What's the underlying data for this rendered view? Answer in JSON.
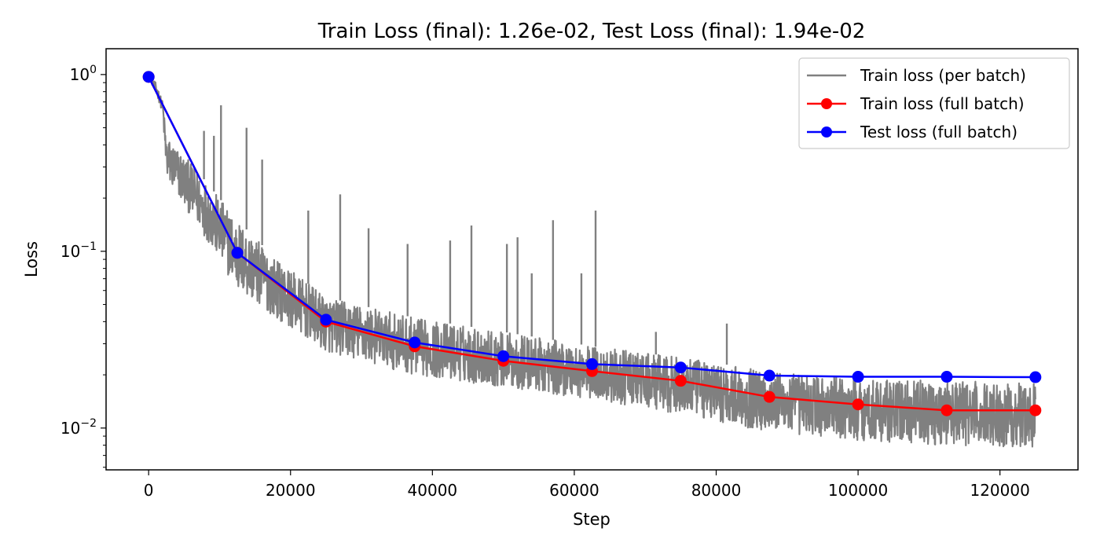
{
  "chart_data": {
    "type": "line",
    "title": "Train Loss (final): 1.26e-02, Test Loss (final): 1.94e-02",
    "xlabel": "Step",
    "ylabel": "Loss",
    "xlim": [
      -6000,
      131000
    ],
    "ylim": [
      0.0058,
      1.4
    ],
    "yscale": "log",
    "x_ticks": [
      0,
      20000,
      40000,
      60000,
      80000,
      100000,
      120000
    ],
    "x_tick_labels": [
      "0",
      "20000",
      "40000",
      "60000",
      "80000",
      "100000",
      "120000"
    ],
    "y_ticks": [
      1,
      0.1,
      0.01
    ],
    "y_tick_labels": [
      {
        "base": "10",
        "exp": "0"
      },
      {
        "base": "10",
        "exp": "−1"
      },
      {
        "base": "10",
        "exp": "−2"
      }
    ],
    "grid": false,
    "legend_position": "top-right",
    "series": [
      {
        "name": "Train loss (per batch)",
        "color": "#808080",
        "style": "noisy-band",
        "x": [
          0,
          1000,
          2000,
          2500,
          5000,
          8000,
          12500,
          18000,
          25000,
          37500,
          50000,
          62500,
          75000,
          87500,
          100000,
          112500,
          125000
        ],
        "y_upper": [
          1.0,
          0.9,
          0.7,
          0.45,
          0.35,
          0.25,
          0.15,
          0.09,
          0.055,
          0.042,
          0.035,
          0.029,
          0.025,
          0.021,
          0.019,
          0.0185,
          0.018
        ],
        "y_lower": [
          0.95,
          0.8,
          0.6,
          0.25,
          0.18,
          0.12,
          0.06,
          0.042,
          0.027,
          0.02,
          0.017,
          0.0145,
          0.012,
          0.0095,
          0.0085,
          0.008,
          0.0078
        ],
        "spikes": [
          {
            "x": 10200,
            "y": 0.67
          },
          {
            "x": 13800,
            "y": 0.5
          },
          {
            "x": 7800,
            "y": 0.48
          },
          {
            "x": 9200,
            "y": 0.45
          },
          {
            "x": 16000,
            "y": 0.33
          },
          {
            "x": 27000,
            "y": 0.21
          },
          {
            "x": 22500,
            "y": 0.17
          },
          {
            "x": 31000,
            "y": 0.135
          },
          {
            "x": 63000,
            "y": 0.17
          },
          {
            "x": 57000,
            "y": 0.15
          },
          {
            "x": 45500,
            "y": 0.14
          },
          {
            "x": 52000,
            "y": 0.12
          },
          {
            "x": 50500,
            "y": 0.11
          },
          {
            "x": 42500,
            "y": 0.115
          },
          {
            "x": 36500,
            "y": 0.11
          },
          {
            "x": 61000,
            "y": 0.075
          },
          {
            "x": 54000,
            "y": 0.075
          },
          {
            "x": 81500,
            "y": 0.039
          },
          {
            "x": 71500,
            "y": 0.035
          }
        ]
      },
      {
        "name": "Train loss (full batch)",
        "color": "#ff0000",
        "marker": "circle",
        "x": [
          0,
          12500,
          25000,
          37500,
          50000,
          62500,
          75000,
          87500,
          100000,
          112500,
          125000
        ],
        "y": [
          0.97,
          0.098,
          0.04,
          0.029,
          0.024,
          0.021,
          0.0185,
          0.015,
          0.0136,
          0.0126,
          0.0126
        ]
      },
      {
        "name": "Test loss (full batch)",
        "color": "#0000ff",
        "marker": "circle",
        "x": [
          0,
          12500,
          25000,
          37500,
          50000,
          62500,
          75000,
          87500,
          100000,
          112500,
          125000
        ],
        "y": [
          0.97,
          0.098,
          0.041,
          0.0305,
          0.0255,
          0.023,
          0.022,
          0.0198,
          0.0195,
          0.0195,
          0.0194
        ]
      }
    ]
  }
}
